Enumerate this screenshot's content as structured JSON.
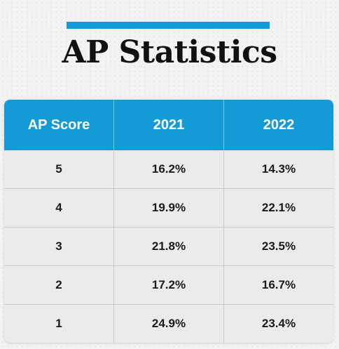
{
  "title": "AP Statistics",
  "colors": {
    "accent": "#149bd7",
    "background": "#f3f3f4",
    "table_body": "#ebebec",
    "header_text": "#ffffff",
    "title_text": "#111111"
  },
  "table": {
    "headers": [
      "AP Score",
      "2021",
      "2022"
    ],
    "rows": [
      {
        "score": "5",
        "y2021": "16.2%",
        "y2022": "14.3%"
      },
      {
        "score": "4",
        "y2021": "19.9%",
        "y2022": "22.1%"
      },
      {
        "score": "3",
        "y2021": "21.8%",
        "y2022": "23.5%"
      },
      {
        "score": "2",
        "y2021": "17.2%",
        "y2022": "16.7%"
      },
      {
        "score": "1",
        "y2021": "24.9%",
        "y2022": "23.4%"
      }
    ]
  }
}
